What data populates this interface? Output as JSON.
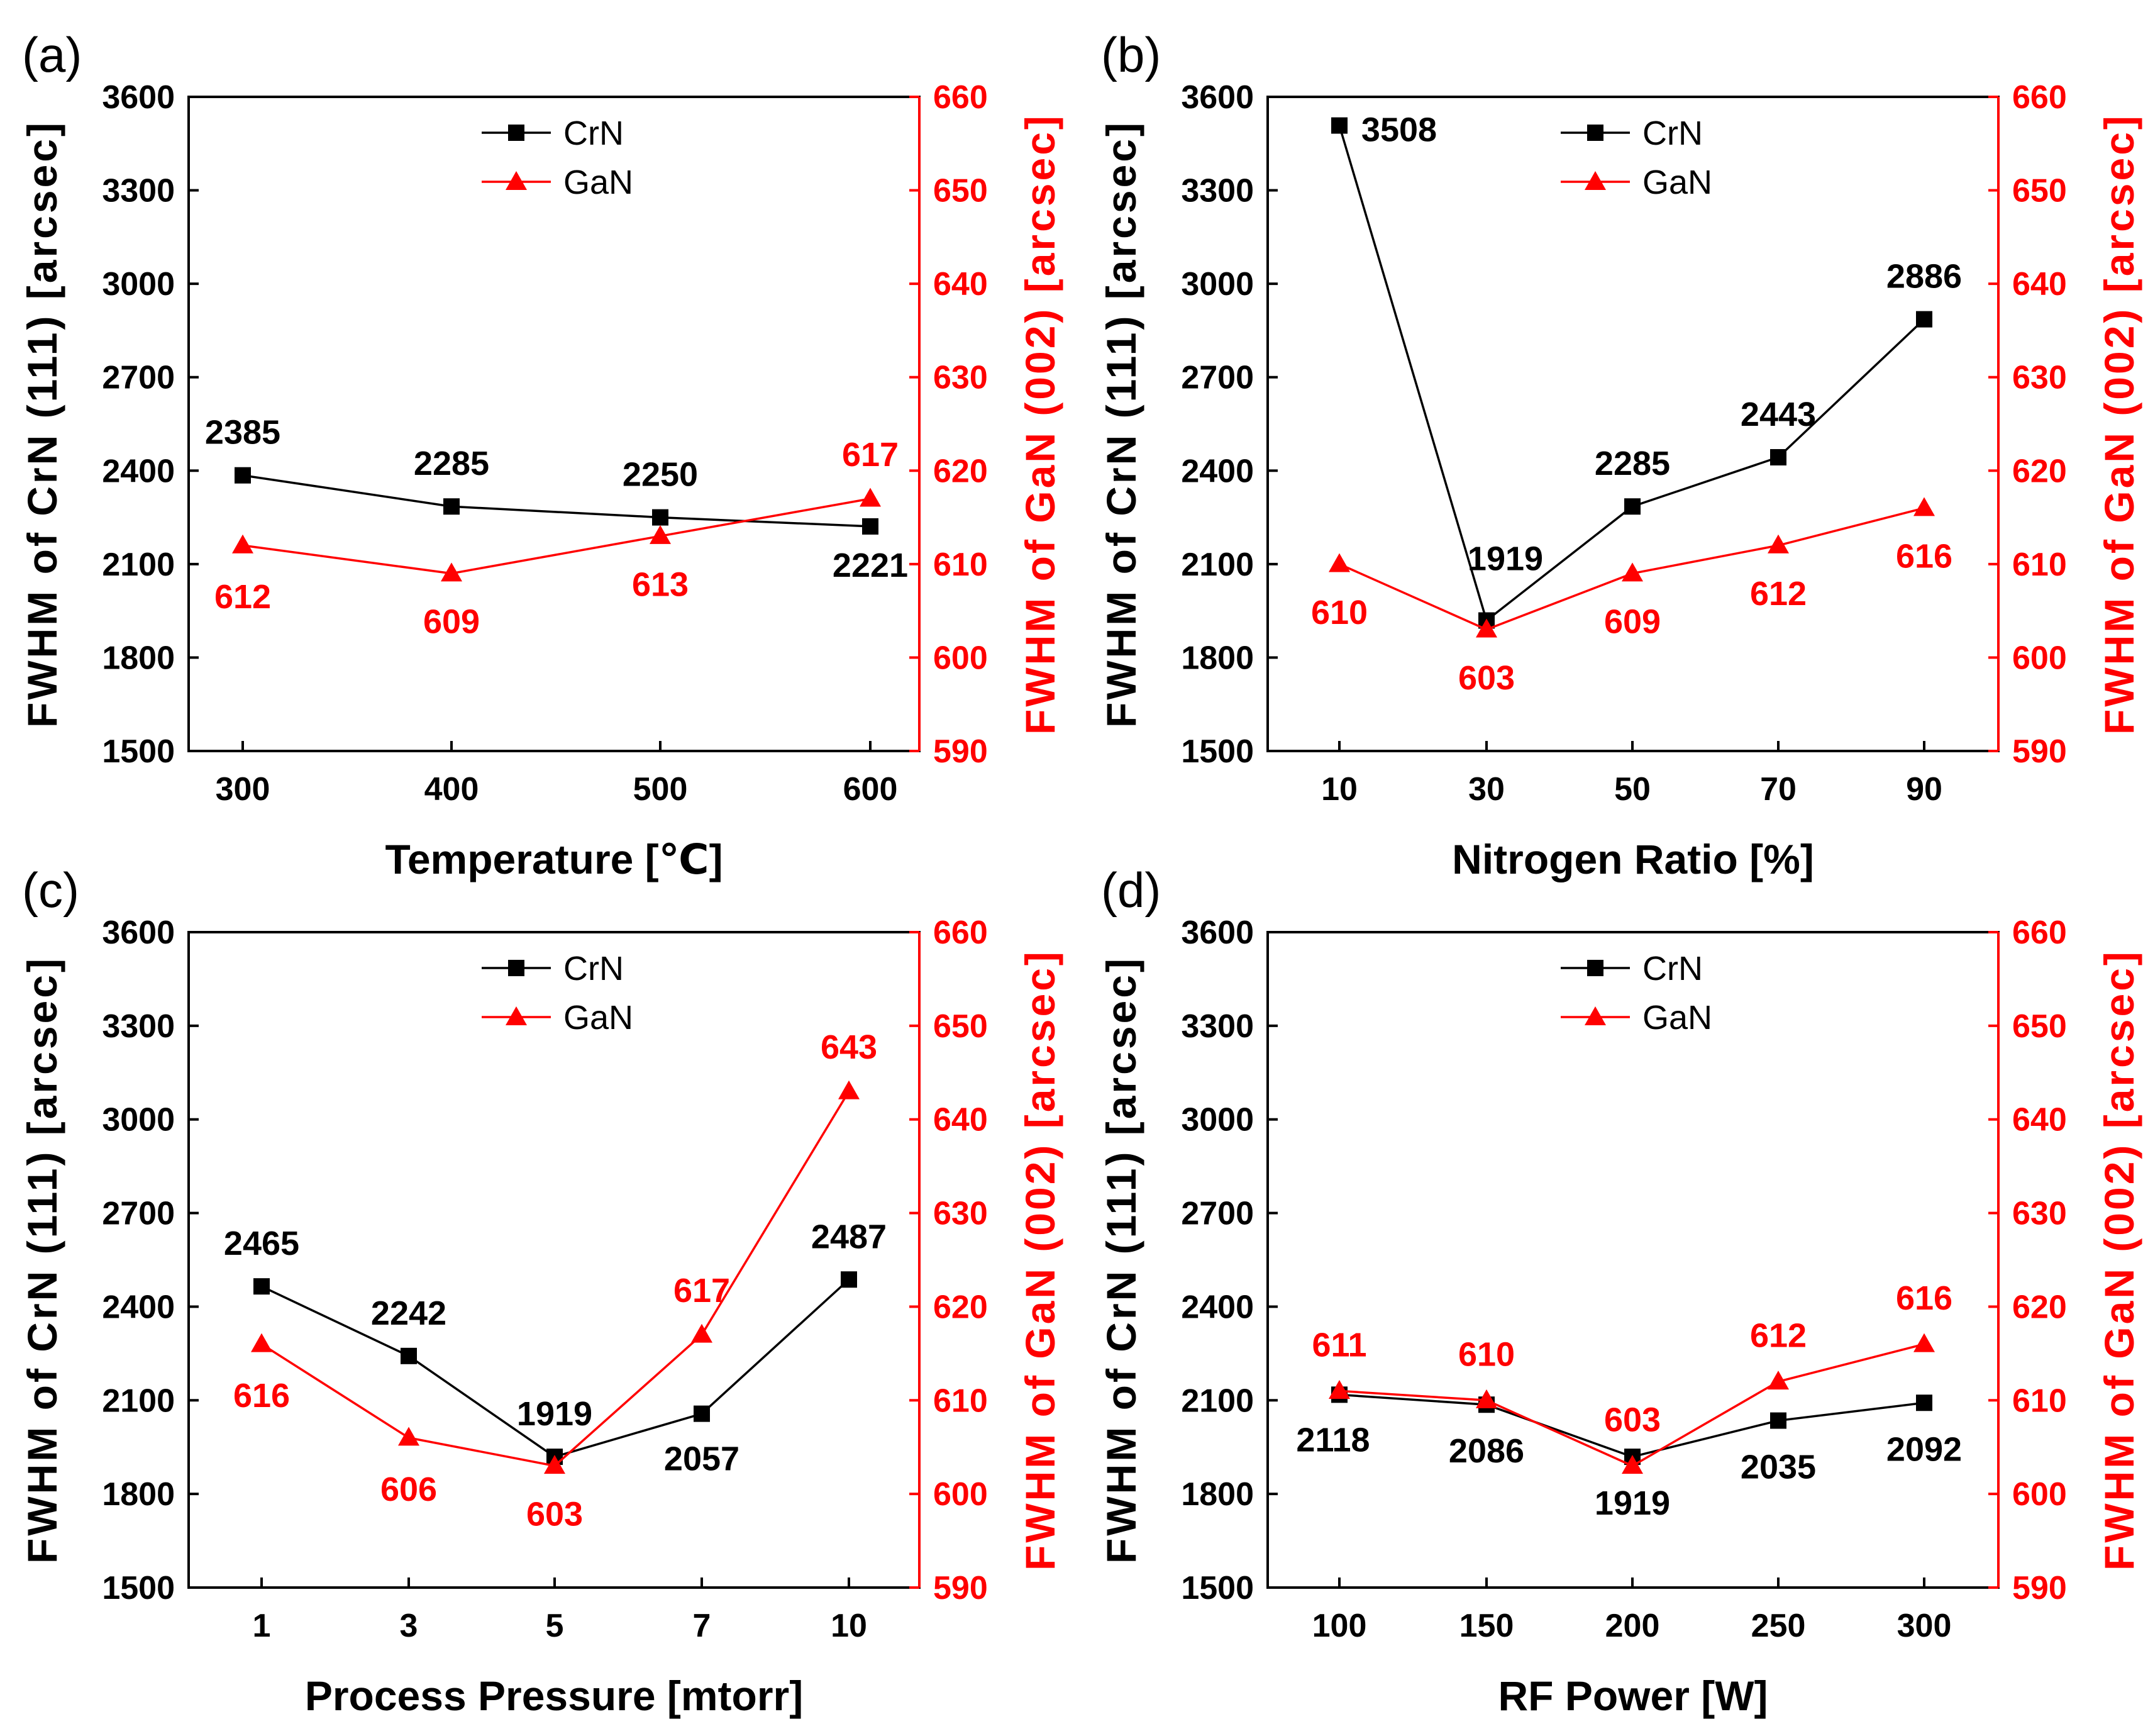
{
  "figure": {
    "colors": {
      "crn": "#000000",
      "gan": "#ff0000",
      "frame": "#000000"
    },
    "left_axis_label": "FWHM of CrN (111) [arcsec]",
    "right_axis_label": "FWHM of GaN (002) [arcsec]",
    "legend": {
      "crn": "CrN",
      "gan": "GaN"
    }
  },
  "chart_data": [
    {
      "type": "line",
      "panel_label": "(a)",
      "xlabel": "Temperature [℃]",
      "categories": [
        "300",
        "400",
        "500",
        "600"
      ],
      "ylabel_left": "FWHM of CrN (111) [arcsec]",
      "ylabel_right": "FWHM of GaN (002) [arcsec]",
      "ylim_left": [
        1500,
        3600
      ],
      "yticks_left": [
        "1500",
        "1800",
        "2100",
        "2400",
        "2700",
        "3000",
        "3300",
        "3600"
      ],
      "ylim_right": [
        590,
        660
      ],
      "yticks_right": [
        "590",
        "600",
        "610",
        "620",
        "630",
        "640",
        "650",
        "660"
      ],
      "legend_position": "top-center",
      "series": [
        {
          "name": "CrN",
          "axis": "left",
          "marker": "square",
          "values": [
            2385,
            2285,
            2250,
            2221
          ],
          "labels": [
            "2385",
            "2285",
            "2250",
            "2221"
          ]
        },
        {
          "name": "GaN",
          "axis": "right",
          "marker": "triangle",
          "values": [
            612,
            609,
            613,
            617
          ],
          "labels": [
            "612",
            "609",
            "613",
            "617"
          ]
        }
      ]
    },
    {
      "type": "line",
      "panel_label": "(b)",
      "xlabel": "Nitrogen Ratio [%]",
      "categories": [
        "10",
        "30",
        "50",
        "70",
        "90"
      ],
      "ylabel_left": "FWHM of CrN (111) [arcsec]",
      "ylabel_right": "FWHM of GaN (002) [arcsec]",
      "ylim_left": [
        1500,
        3600
      ],
      "yticks_left": [
        "1500",
        "1800",
        "2100",
        "2400",
        "2700",
        "3000",
        "3300",
        "3600"
      ],
      "ylim_right": [
        590,
        660
      ],
      "yticks_right": [
        "590",
        "600",
        "610",
        "620",
        "630",
        "640",
        "650",
        "660"
      ],
      "legend_position": "top-center",
      "series": [
        {
          "name": "CrN",
          "axis": "left",
          "marker": "square",
          "values": [
            3508,
            1919,
            2285,
            2443,
            2886
          ],
          "labels": [
            "3508",
            "1919",
            "2285",
            "2443",
            "2886"
          ]
        },
        {
          "name": "GaN",
          "axis": "right",
          "marker": "triangle",
          "values": [
            610,
            603,
            609,
            612,
            616
          ],
          "labels": [
            "610",
            "603",
            "609",
            "612",
            "616"
          ]
        }
      ]
    },
    {
      "type": "line",
      "panel_label": "(c)",
      "xlabel": "Process Pressure [mtorr]",
      "categories": [
        "1",
        "3",
        "5",
        "7",
        "10"
      ],
      "ylabel_left": "FWHM of CrN (111) [arcsec]",
      "ylabel_right": "FWHM of GaN (002) [arcsec]",
      "ylim_left": [
        1500,
        3600
      ],
      "yticks_left": [
        "1500",
        "1800",
        "2100",
        "2400",
        "2700",
        "3000",
        "3300",
        "3600"
      ],
      "ylim_right": [
        590,
        660
      ],
      "yticks_right": [
        "590",
        "600",
        "610",
        "620",
        "630",
        "640",
        "650",
        "660"
      ],
      "legend_position": "top-center",
      "series": [
        {
          "name": "CrN",
          "axis": "left",
          "marker": "square",
          "values": [
            2465,
            2242,
            1919,
            2057,
            2487
          ],
          "labels": [
            "2465",
            "2242",
            "1919",
            "2057",
            "2487"
          ]
        },
        {
          "name": "GaN",
          "axis": "right",
          "marker": "triangle",
          "values": [
            616,
            606,
            603,
            617,
            643
          ],
          "labels": [
            "616",
            "606",
            "603",
            "617",
            "643"
          ]
        }
      ]
    },
    {
      "type": "line",
      "panel_label": "(d)",
      "xlabel": "RF Power [W]",
      "categories": [
        "100",
        "150",
        "200",
        "250",
        "300"
      ],
      "ylabel_left": "FWHM of CrN (111) [arcsec]",
      "ylabel_right": "FWHM of GaN (002) [arcsec]",
      "ylim_left": [
        1500,
        3600
      ],
      "yticks_left": [
        "1500",
        "1800",
        "2100",
        "2400",
        "2700",
        "3000",
        "3300",
        "3600"
      ],
      "ylim_right": [
        590,
        660
      ],
      "yticks_right": [
        "590",
        "600",
        "610",
        "620",
        "630",
        "640",
        "650",
        "660"
      ],
      "legend_position": "top-center",
      "series": [
        {
          "name": "CrN",
          "axis": "left",
          "marker": "square",
          "values": [
            2118,
            2086,
            1919,
            2035,
            2092
          ],
          "labels": [
            "2118",
            "2086",
            "1919",
            "2035",
            "2092"
          ]
        },
        {
          "name": "GaN",
          "axis": "right",
          "marker": "triangle",
          "values": [
            611,
            610,
            603,
            612,
            616
          ],
          "labels": [
            "611",
            "610",
            "603",
            "612",
            "616"
          ]
        }
      ]
    }
  ]
}
